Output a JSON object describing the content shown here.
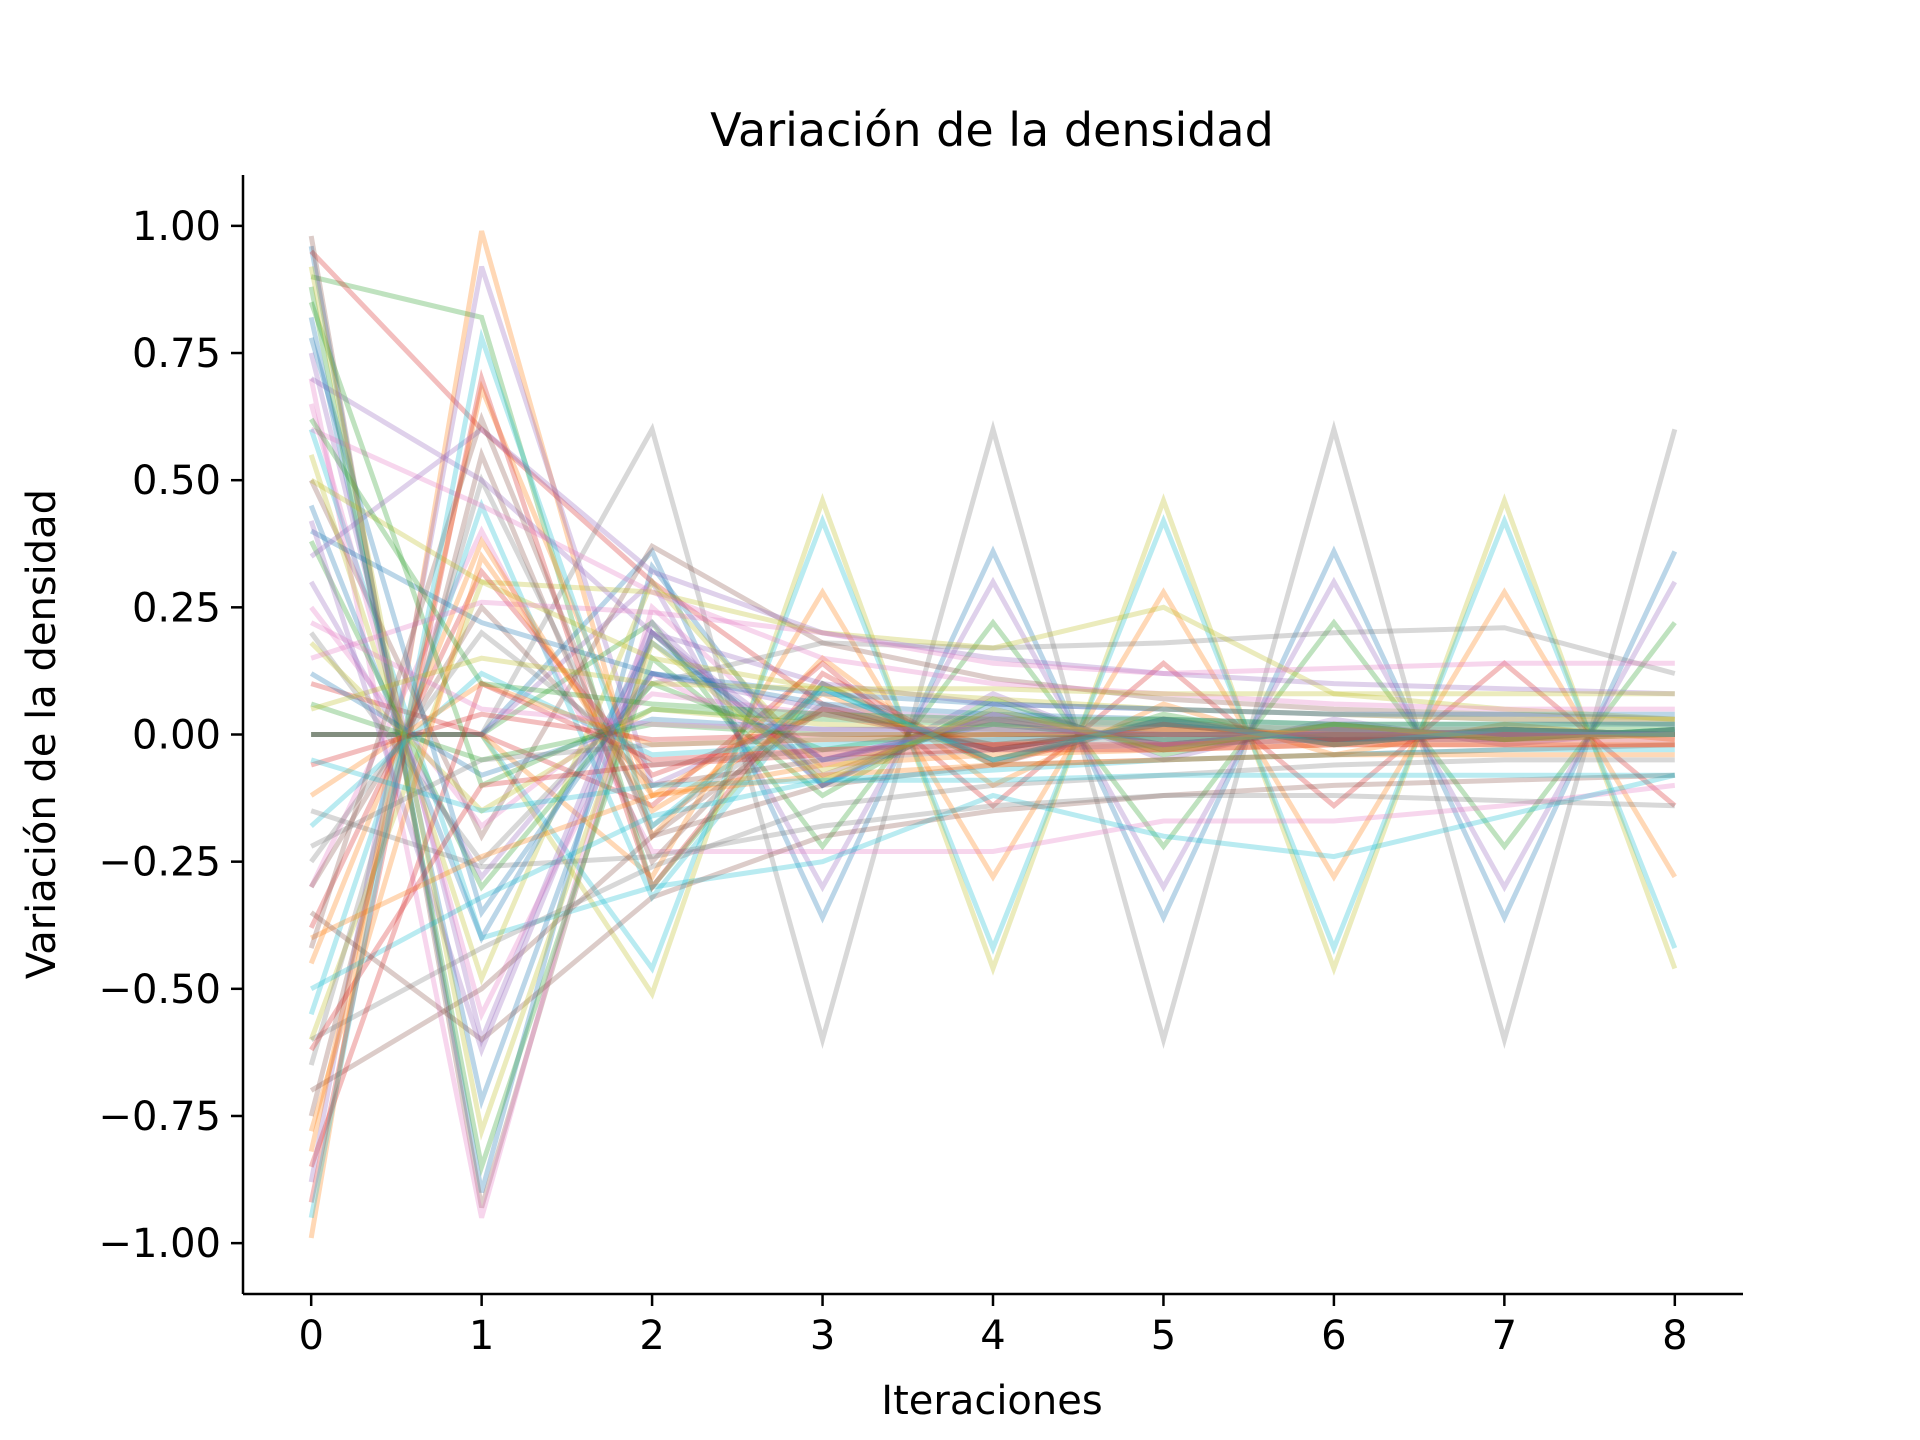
{
  "chart_data": {
    "type": "line",
    "title": "Variación de la densidad",
    "xlabel": "Iteraciones",
    "ylabel": "Variación de la densidad",
    "xlim": [
      -0.4,
      8.4
    ],
    "ylim": [
      -1.1,
      1.1
    ],
    "x": [
      0,
      1,
      2,
      3,
      4,
      5,
      6,
      7,
      8
    ],
    "x_ticks": [
      "0",
      "1",
      "2",
      "3",
      "4",
      "5",
      "6",
      "7",
      "8"
    ],
    "y_ticks": [
      {
        "value": 1.0,
        "label": "1.00"
      },
      {
        "value": 0.75,
        "label": "0.75"
      },
      {
        "value": 0.5,
        "label": "0.50"
      },
      {
        "value": 0.25,
        "label": "0.25"
      },
      {
        "value": 0.0,
        "label": "0.00"
      },
      {
        "value": -0.25,
        "label": "−0.25"
      },
      {
        "value": -0.5,
        "label": "−0.50"
      },
      {
        "value": -0.75,
        "label": "−0.75"
      },
      {
        "value": -1.0,
        "label": "−1.00"
      }
    ],
    "grid": false,
    "legend": "none",
    "line_alpha": 0.3,
    "palette": [
      "#1f77b4",
      "#ff7f0e",
      "#2ca02c",
      "#d62728",
      "#9467bd",
      "#8c564b",
      "#e377c2",
      "#7f7f7f",
      "#bcbd22",
      "#17becf"
    ],
    "series": [
      {
        "values": [
          0.96,
          -0.9,
          0.33,
          -0.1,
          0.05,
          -0.03,
          0.02,
          -0.01,
          0.01
        ]
      },
      {
        "values": [
          -0.99,
          0.99,
          -0.2,
          0.15,
          -0.1,
          0.06,
          -0.04,
          0.02,
          -0.01
        ]
      },
      {
        "values": [
          0.9,
          0.82,
          -0.3,
          0.1,
          -0.06,
          0.04,
          -0.02,
          0.01,
          0.0
        ]
      },
      {
        "values": [
          0.95,
          0.6,
          0.3,
          0.06,
          -0.03,
          0.02,
          -0.01,
          0.0,
          0.0
        ]
      },
      {
        "values": [
          -0.88,
          0.92,
          -0.1,
          0.05,
          -0.03,
          0.02,
          -0.01,
          0.01,
          0.0
        ]
      },
      {
        "values": [
          0.98,
          -0.93,
          0.2,
          -0.08,
          0.04,
          -0.02,
          0.01,
          0.0,
          0.0
        ]
      },
      {
        "values": [
          0.7,
          -0.95,
          0.25,
          -0.05,
          0.03,
          -0.02,
          0.01,
          0.0,
          0.0
        ]
      },
      {
        "values": [
          0.0,
          0.0,
          0.6,
          -0.6,
          0.6,
          -0.6,
          0.6,
          -0.6,
          0.6
        ]
      },
      {
        "values": [
          0.0,
          0.0,
          -0.51,
          0.46,
          -0.46,
          0.46,
          -0.46,
          0.46,
          -0.46
        ]
      },
      {
        "values": [
          0.0,
          0.0,
          -0.46,
          0.42,
          -0.42,
          0.42,
          -0.42,
          0.42,
          -0.42
        ]
      },
      {
        "values": [
          0.0,
          0.0,
          0.36,
          -0.36,
          0.36,
          -0.36,
          0.36,
          -0.36,
          0.36
        ]
      },
      {
        "values": [
          0.0,
          0.0,
          -0.28,
          0.28,
          -0.28,
          0.28,
          -0.28,
          0.28,
          -0.28
        ]
      },
      {
        "values": [
          0.0,
          0.0,
          0.22,
          -0.22,
          0.22,
          -0.22,
          0.22,
          -0.22,
          0.22
        ]
      },
      {
        "values": [
          0.1,
          0.0,
          -0.14,
          0.14,
          -0.14,
          0.14,
          -0.14,
          0.14,
          -0.14
        ]
      },
      {
        "values": [
          0.0,
          0.0,
          0.3,
          -0.3,
          0.3,
          -0.3,
          0.3,
          -0.3,
          0.3
        ]
      },
      {
        "values": [
          0.5,
          -0.2,
          0.37,
          0.18,
          0.11,
          0.07,
          0.05,
          0.04,
          0.03
        ]
      },
      {
        "values": [
          -0.3,
          0.4,
          -0.23,
          -0.23,
          -0.23,
          -0.17,
          -0.17,
          -0.14,
          -0.1
        ]
      },
      {
        "values": [
          0.2,
          -0.25,
          0.1,
          0.18,
          0.17,
          0.18,
          0.2,
          0.21,
          0.12
        ]
      },
      {
        "values": [
          -0.6,
          0.3,
          0.28,
          0.2,
          0.17,
          0.25,
          0.08,
          0.05,
          0.03
        ]
      },
      {
        "values": [
          0.6,
          -0.4,
          -0.3,
          -0.25,
          -0.12,
          -0.2,
          -0.24,
          -0.16,
          -0.08
        ]
      },
      {
        "values": [
          0.82,
          -0.72,
          0.2,
          -0.1,
          0.06,
          -0.03,
          0.02,
          -0.01,
          0.01
        ]
      },
      {
        "values": [
          -0.82,
          0.68,
          -0.12,
          0.08,
          -0.05,
          0.03,
          -0.02,
          0.01,
          0.0
        ]
      },
      {
        "values": [
          0.88,
          -0.85,
          0.15,
          -0.12,
          0.07,
          -0.04,
          0.02,
          -0.01,
          0.01
        ]
      },
      {
        "values": [
          -0.92,
          0.7,
          -0.3,
          0.12,
          -0.06,
          0.03,
          -0.02,
          0.01,
          0.0
        ]
      },
      {
        "values": [
          0.75,
          -0.6,
          0.22,
          -0.1,
          0.08,
          -0.05,
          0.03,
          -0.02,
          0.01
        ]
      },
      {
        "values": [
          -0.75,
          0.55,
          -0.25,
          0.1,
          -0.05,
          0.03,
          -0.01,
          0.01,
          0.0
        ]
      },
      {
        "values": [
          0.65,
          -0.55,
          0.12,
          -0.06,
          0.04,
          -0.02,
          0.01,
          0.0,
          0.0
        ]
      },
      {
        "values": [
          -0.65,
          0.5,
          -0.18,
          0.06,
          -0.03,
          0.02,
          -0.01,
          0.0,
          0.0
        ]
      },
      {
        "values": [
          0.55,
          -0.48,
          0.3,
          -0.07,
          0.03,
          -0.02,
          0.01,
          0.0,
          0.0
        ]
      },
      {
        "values": [
          -0.55,
          0.45,
          -0.32,
          0.09,
          -0.05,
          0.02,
          -0.01,
          0.0,
          0.0
        ]
      },
      {
        "values": [
          0.45,
          -0.4,
          0.18,
          -0.05,
          0.02,
          -0.01,
          0.0,
          0.0,
          0.0
        ]
      },
      {
        "values": [
          -0.45,
          0.38,
          -0.15,
          0.05,
          -0.02,
          0.01,
          0.0,
          0.0,
          0.0
        ]
      },
      {
        "values": [
          0.38,
          -0.3,
          0.1,
          -0.03,
          0.02,
          -0.01,
          0.0,
          0.0,
          0.0
        ]
      },
      {
        "values": [
          -0.38,
          0.32,
          -0.08,
          0.04,
          -0.02,
          0.01,
          0.0,
          0.0,
          0.0
        ]
      },
      {
        "values": [
          0.3,
          -0.28,
          0.12,
          0.05,
          0.03,
          0.02,
          0.01,
          0.01,
          0.0
        ]
      },
      {
        "values": [
          -0.3,
          0.25,
          -0.1,
          -0.05,
          -0.03,
          -0.02,
          -0.01,
          -0.01,
          0.0
        ]
      },
      {
        "values": [
          0.25,
          -0.18,
          0.08,
          0.04,
          0.02,
          0.01,
          0.0,
          0.0,
          0.0
        ]
      },
      {
        "values": [
          -0.25,
          0.2,
          -0.06,
          -0.03,
          -0.02,
          -0.01,
          0.0,
          0.0,
          0.0
        ]
      },
      {
        "values": [
          0.18,
          -0.15,
          0.05,
          0.02,
          0.01,
          0.01,
          0.0,
          0.0,
          0.0
        ]
      },
      {
        "values": [
          -0.18,
          0.12,
          -0.04,
          -0.02,
          -0.01,
          0.0,
          0.0,
          0.0,
          0.0
        ]
      },
      {
        "values": [
          0.12,
          -0.08,
          0.03,
          0.01,
          0.01,
          0.0,
          0.0,
          0.0,
          0.0
        ]
      },
      {
        "values": [
          -0.12,
          0.1,
          -0.02,
          -0.01,
          0.0,
          0.0,
          0.0,
          0.0,
          0.0
        ]
      },
      {
        "values": [
          0.06,
          -0.05,
          0.02,
          0.0,
          0.0,
          0.0,
          0.0,
          0.0,
          0.0
        ]
      },
      {
        "values": [
          -0.06,
          0.04,
          -0.01,
          0.0,
          0.0,
          0.0,
          0.0,
          0.0,
          0.0
        ]
      },
      {
        "values": [
          0.7,
          0.5,
          0.2,
          0.1,
          0.06,
          0.05,
          0.04,
          0.03,
          0.02
        ]
      },
      {
        "values": [
          -0.7,
          -0.5,
          -0.2,
          -0.1,
          -0.06,
          -0.05,
          -0.04,
          -0.03,
          -0.02
        ]
      },
      {
        "values": [
          0.6,
          0.45,
          0.28,
          0.15,
          0.1,
          0.08,
          0.06,
          0.05,
          0.05
        ]
      },
      {
        "values": [
          -0.6,
          -0.42,
          -0.26,
          -0.14,
          -0.1,
          -0.08,
          -0.06,
          -0.05,
          -0.05
        ]
      },
      {
        "values": [
          0.5,
          0.3,
          0.15,
          0.09,
          0.07,
          0.05,
          0.04,
          0.03,
          0.03
        ]
      },
      {
        "values": [
          -0.5,
          -0.32,
          -0.16,
          -0.09,
          -0.07,
          -0.05,
          -0.04,
          -0.03,
          -0.03
        ]
      },
      {
        "values": [
          0.4,
          0.22,
          0.12,
          0.08,
          0.06,
          0.05,
          0.04,
          0.04,
          0.04
        ]
      },
      {
        "values": [
          -0.4,
          -0.24,
          -0.12,
          -0.08,
          -0.06,
          -0.05,
          -0.04,
          -0.04,
          -0.04
        ]
      },
      {
        "values": [
          0.85,
          -0.1,
          0.05,
          0.03,
          0.02,
          0.02,
          0.01,
          0.01,
          0.01
        ]
      },
      {
        "values": [
          -0.85,
          0.1,
          -0.05,
          -0.03,
          -0.02,
          -0.02,
          -0.01,
          -0.01,
          -0.01
        ]
      },
      {
        "values": [
          0.35,
          0.6,
          0.32,
          0.2,
          0.15,
          0.12,
          0.1,
          0.09,
          0.08
        ]
      },
      {
        "values": [
          -0.35,
          -0.6,
          -0.32,
          -0.2,
          -0.15,
          -0.12,
          -0.1,
          -0.09,
          -0.08
        ]
      },
      {
        "values": [
          0.15,
          0.26,
          0.24,
          0.2,
          0.14,
          0.12,
          0.13,
          0.14,
          0.14
        ]
      },
      {
        "values": [
          -0.15,
          -0.26,
          -0.24,
          -0.18,
          -0.14,
          -0.12,
          -0.12,
          -0.13,
          -0.14
        ]
      },
      {
        "values": [
          0.05,
          0.15,
          0.1,
          0.09,
          0.09,
          0.08,
          0.08,
          0.08,
          0.08
        ]
      },
      {
        "values": [
          -0.05,
          -0.15,
          -0.1,
          -0.09,
          -0.09,
          -0.08,
          -0.08,
          -0.08,
          -0.08
        ]
      },
      {
        "values": [
          0.78,
          -0.35,
          0.12,
          0.06,
          0.04,
          0.03,
          0.02,
          0.02,
          0.02
        ]
      },
      {
        "values": [
          -0.78,
          0.35,
          -0.12,
          -0.06,
          -0.04,
          -0.03,
          -0.02,
          -0.02,
          -0.02
        ]
      },
      {
        "values": [
          0.62,
          0.1,
          0.06,
          0.04,
          0.03,
          0.03,
          0.02,
          0.02,
          0.02
        ]
      },
      {
        "values": [
          -0.62,
          -0.1,
          -0.06,
          -0.04,
          -0.03,
          -0.03,
          -0.02,
          -0.02,
          -0.02
        ]
      },
      {
        "values": [
          0.42,
          -0.62,
          0.2,
          -0.05,
          0.03,
          -0.02,
          0.01,
          0.0,
          0.0
        ]
      },
      {
        "values": [
          -0.42,
          0.62,
          -0.2,
          0.05,
          -0.03,
          0.02,
          -0.01,
          0.0,
          0.0
        ]
      },
      {
        "values": [
          0.22,
          0.05,
          0.02,
          0.01,
          0.01,
          0.0,
          0.0,
          0.0,
          0.0
        ]
      },
      {
        "values": [
          -0.22,
          -0.05,
          -0.02,
          -0.01,
          -0.01,
          0.0,
          0.0,
          0.0,
          0.0
        ]
      },
      {
        "values": [
          0.92,
          -0.78,
          0.18,
          -0.09,
          0.05,
          -0.03,
          0.02,
          -0.01,
          0.0
        ]
      },
      {
        "values": [
          -0.95,
          0.78,
          -0.18,
          0.09,
          -0.05,
          0.03,
          -0.02,
          0.01,
          0.0
        ]
      }
    ]
  }
}
